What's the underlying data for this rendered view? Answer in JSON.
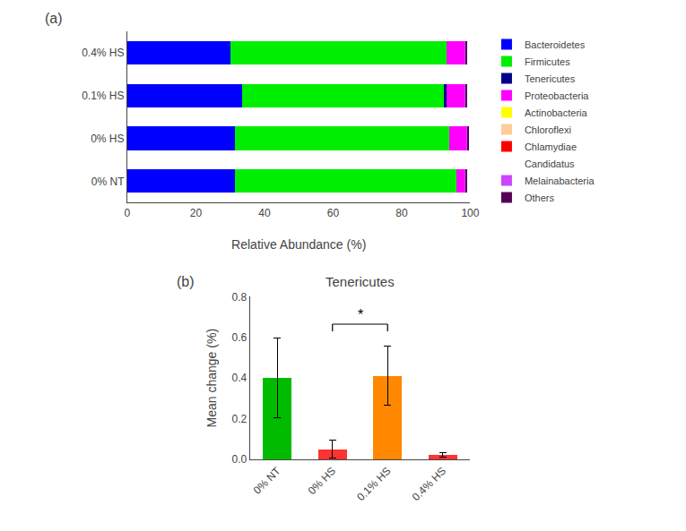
{
  "chart_data": [
    {
      "type": "bar",
      "orientation": "horizontal",
      "stacked": true,
      "categories": [
        "0% NT",
        "0% HS",
        "0.1% HS",
        "0.4% HS"
      ],
      "series": [
        {
          "name": "Bacteroidetes",
          "color": "#0000ff",
          "values": [
            31.5,
            31.5,
            33.5,
            30.0
          ]
        },
        {
          "name": "Firmicutes",
          "color": "#00ee00",
          "values": [
            64.5,
            62.5,
            59.0,
            63.0
          ]
        },
        {
          "name": "Tenericutes",
          "color": "#00008b",
          "values": [
            0.0,
            0.0,
            0.5,
            0.0
          ]
        },
        {
          "name": "Proteobacteria",
          "color": "#ff00ff",
          "values": [
            2.5,
            5.0,
            5.5,
            5.5
          ]
        },
        {
          "name": "Actinobacteria",
          "color": "#ffff00",
          "values": [
            0.0,
            0.0,
            0.0,
            0.0
          ]
        },
        {
          "name": "Chloroflexi",
          "color": "#ffcc99",
          "values": [
            0.0,
            0.0,
            0.0,
            0.0
          ]
        },
        {
          "name": "Chlamydiae",
          "color": "#ff0000",
          "values": [
            0.0,
            0.0,
            0.0,
            0.0
          ]
        },
        {
          "name": "Candidatus",
          "color": "#ffffff",
          "values": [
            0.0,
            0.0,
            0.0,
            0.0
          ]
        },
        {
          "name": "Melainabacteria",
          "color": "#cc44ff",
          "values": [
            0.3,
            0.3,
            0.3,
            0.3
          ]
        },
        {
          "name": "Others",
          "color": "#550055",
          "values": [
            0.2,
            0.2,
            0.2,
            0.2
          ]
        }
      ],
      "xlabel": "Relative Abundance (%)",
      "xlim": [
        0,
        100
      ],
      "xticks": [
        0,
        20,
        40,
        60,
        80,
        100
      ],
      "legend": "right",
      "grid": false,
      "annotations": [
        {
          "text": "(a)"
        }
      ]
    },
    {
      "type": "bar",
      "title": "Tenericutes",
      "categories": [
        "0% NT",
        "0% HS",
        "0.1% HS",
        "0.4% HS"
      ],
      "values": [
        0.4,
        0.05,
        0.41,
        0.022
      ],
      "errors": [
        0.195,
        0.045,
        0.145,
        0.012
      ],
      "colors": [
        "#00bb00",
        "#ff3333",
        "#ff8800",
        "#ff3333"
      ],
      "ylabel": "Mean change (%)",
      "ylim": [
        0,
        0.8
      ],
      "yticks": [
        {
          "value": 0.0,
          "label": "0.0"
        },
        0.2,
        0.4,
        0.6,
        0.8
      ],
      "grid": false,
      "annotations": [
        {
          "text": "(b)"
        },
        {
          "text": "*",
          "x": [
            "0% HS",
            "0.1% HS"
          ],
          "y": 0.665
        }
      ]
    }
  ]
}
